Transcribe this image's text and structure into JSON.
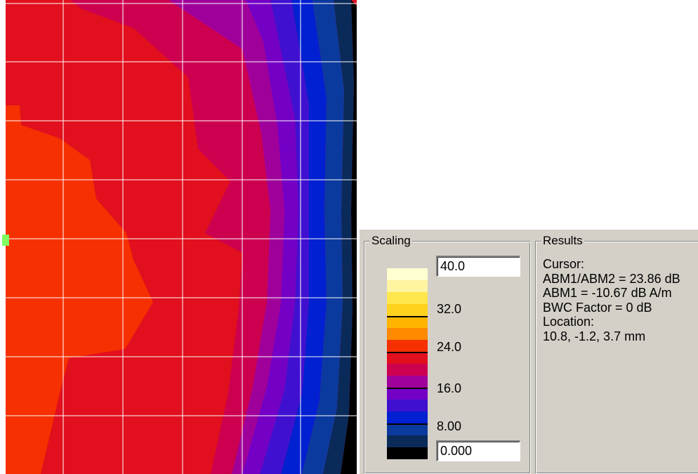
{
  "plot": {
    "background": "#ffffff",
    "grid_color": "#ffffff",
    "cursor_marker_color": "#7fff5f"
  },
  "scaling": {
    "title": "Scaling",
    "max_value": "40.0",
    "min_value": "0.000",
    "labels": [
      "32.0",
      "24.0",
      "16.0",
      "8.00"
    ],
    "colors": [
      "#ffffd0",
      "#fff4a0",
      "#ffe64d",
      "#ffd21e",
      "#ffb400",
      "#ff8a00",
      "#f63000",
      "#e20f1e",
      "#cd0050",
      "#a0009a",
      "#7400c6",
      "#4010d0",
      "#0020d2",
      "#0b3a9e",
      "#0a2a5a",
      "#000000"
    ]
  },
  "results": {
    "title": "Results",
    "lines": [
      "Cursor:",
      "ABM1/ABM2 = 23.86 dB",
      "ABM1 = -10.67 dB A/m",
      "BWC Factor = 0 dB",
      "Location:",
      "10.8, -1.2, 3.7 mm"
    ]
  }
}
